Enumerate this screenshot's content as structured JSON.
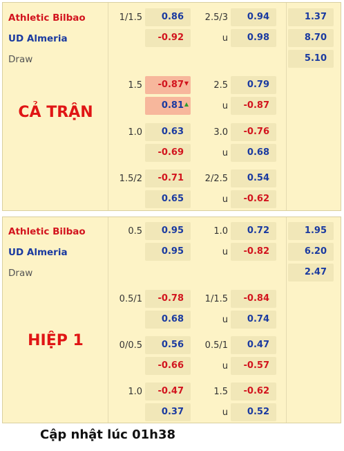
{
  "top": {
    "label": "CẢ TRẬN",
    "home": "Athletic Bilbao",
    "away": "UD Almeria",
    "draw": "Draw",
    "euro": {
      "home": "1.37",
      "away": "8.70",
      "draw": "5.10"
    },
    "rows": [
      {
        "h_line": "1/1.5",
        "h1": "0.86",
        "h2": "-0.92",
        "t_line": "2.5/3",
        "t_u": "u",
        "t1": "0.94",
        "t2": "0.98"
      },
      {
        "h_line": "1.5",
        "h1": "-0.87",
        "h2": "0.81",
        "t_line": "2.5",
        "t_u": "u",
        "t1": "0.79",
        "t2": "-0.87"
      },
      {
        "h_line": "1.0",
        "h1": "0.63",
        "h2": "-0.69",
        "t_line": "3.0",
        "t_u": "u",
        "t1": "-0.76",
        "t2": "0.68"
      },
      {
        "h_line": "1.5/2",
        "h1": "-0.71",
        "h2": "0.65",
        "t_line": "2/2.5",
        "t_u": "u",
        "t1": "0.54",
        "t2": "-0.62"
      }
    ]
  },
  "bottom": {
    "label": "HIỆP 1",
    "home": "Athletic Bilbao",
    "away": "UD Almeria",
    "draw": "Draw",
    "euro": {
      "home": "1.95",
      "away": "6.20",
      "draw": "2.47"
    },
    "rows": [
      {
        "h_line": "0.5",
        "h1": "0.95",
        "h2": "0.95",
        "t_line": "1.0",
        "t_u": "u",
        "t1": "0.72",
        "t2": "-0.82"
      },
      {
        "h_line": "0.5/1",
        "h1": "-0.78",
        "h2": "0.68",
        "t_line": "1/1.5",
        "t_u": "u",
        "t1": "-0.84",
        "t2": "0.74"
      },
      {
        "h_line": "0/0.5",
        "h1": "0.56",
        "h2": "-0.66",
        "t_line": "0.5/1",
        "t_u": "u",
        "t1": "0.47",
        "t2": "-0.57"
      },
      {
        "h_line": "1.0",
        "h1": "-0.47",
        "h2": "0.37",
        "t_line": "1.5",
        "t_u": "u",
        "t1": "-0.62",
        "t2": "0.52"
      }
    ]
  },
  "footer": "Cập nhật lúc 01h38",
  "icons": {
    "down": "▼",
    "up": "▲"
  },
  "colors": {
    "positive": "#1a3aa0",
    "negative": "#d2141e",
    "highlight": "#f7b79c"
  }
}
